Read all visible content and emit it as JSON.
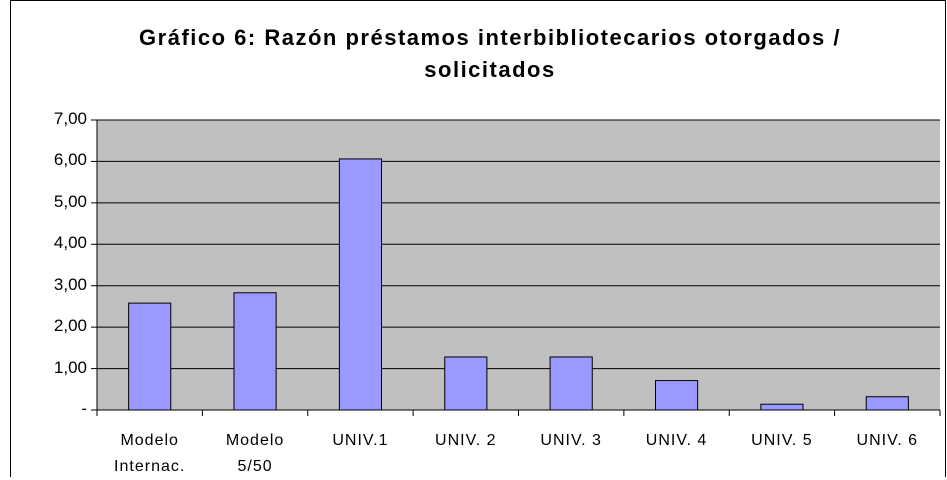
{
  "chart_data": {
    "type": "bar",
    "title": "Gráfico 6:  Razón préstamos interbibliotecarios otorgados / solicitados",
    "categories": [
      "Modelo Internac.",
      "Modelo 5/50",
      "UNIV.1",
      "UNIV. 2",
      "UNIV. 3",
      "UNIV. 4",
      "UNIV. 5",
      "UNIV. 6"
    ],
    "values": [
      2.58,
      2.83,
      6.06,
      1.28,
      1.28,
      0.71,
      0.14,
      0.32
    ],
    "color": "#9999ff",
    "ylim": [
      0,
      7
    ],
    "yticks": [
      {
        "value": 0,
        "label": "-"
      },
      {
        "value": 1,
        "label": "1,00"
      },
      {
        "value": 2,
        "label": "2,00"
      },
      {
        "value": 3,
        "label": "3,00"
      },
      {
        "value": 4,
        "label": "4,00"
      },
      {
        "value": 5,
        "label": "5,00"
      },
      {
        "value": 6,
        "label": "6,00"
      },
      {
        "value": 7,
        "label": "7,00"
      }
    ],
    "grid": true
  }
}
